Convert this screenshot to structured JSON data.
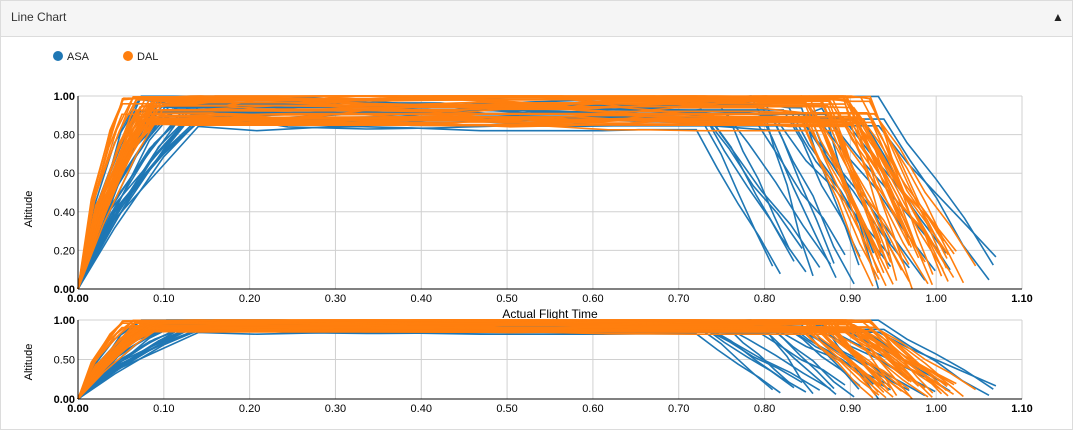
{
  "panel": {
    "title": "Line Chart",
    "collapse_icon": "chevron-up-icon"
  },
  "legend": [
    {
      "name": "ASA",
      "color": "#1f77b4"
    },
    {
      "name": "DAL",
      "color": "#ff7f0e"
    }
  ],
  "chart_data": [
    {
      "type": "line",
      "role": "main",
      "xlabel": "Actual Flight Time",
      "ylabel": "Altitude",
      "xlim": [
        0,
        1.1
      ],
      "ylim": [
        0,
        1.0
      ],
      "xticks": [
        "0.00",
        "0.10",
        "0.20",
        "0.30",
        "0.40",
        "0.50",
        "0.60",
        "0.70",
        "0.80",
        "0.90",
        "1.00",
        "1.10"
      ],
      "yticks": [
        "0.00",
        "0.20",
        "0.40",
        "0.60",
        "0.80",
        "1.00"
      ],
      "grid": true,
      "series": [
        {
          "name": "ASA",
          "color": "#1f77b4"
        },
        {
          "name": "DAL",
          "color": "#ff7f0e"
        }
      ]
    },
    {
      "type": "line",
      "role": "overview",
      "xlabel": "",
      "ylabel": "Altitude",
      "xlim": [
        0,
        1.1
      ],
      "ylim": [
        0,
        1.0
      ],
      "xticks": [
        "0.00",
        "0.10",
        "0.20",
        "0.30",
        "0.40",
        "0.50",
        "0.60",
        "0.70",
        "0.80",
        "0.90",
        "1.00",
        "1.10"
      ],
      "yticks": [
        "0.00",
        "0.50",
        "1.00"
      ],
      "grid": true,
      "series": [
        {
          "name": "ASA",
          "color": "#1f77b4"
        },
        {
          "name": "DAL",
          "color": "#ff7f0e"
        }
      ]
    }
  ]
}
